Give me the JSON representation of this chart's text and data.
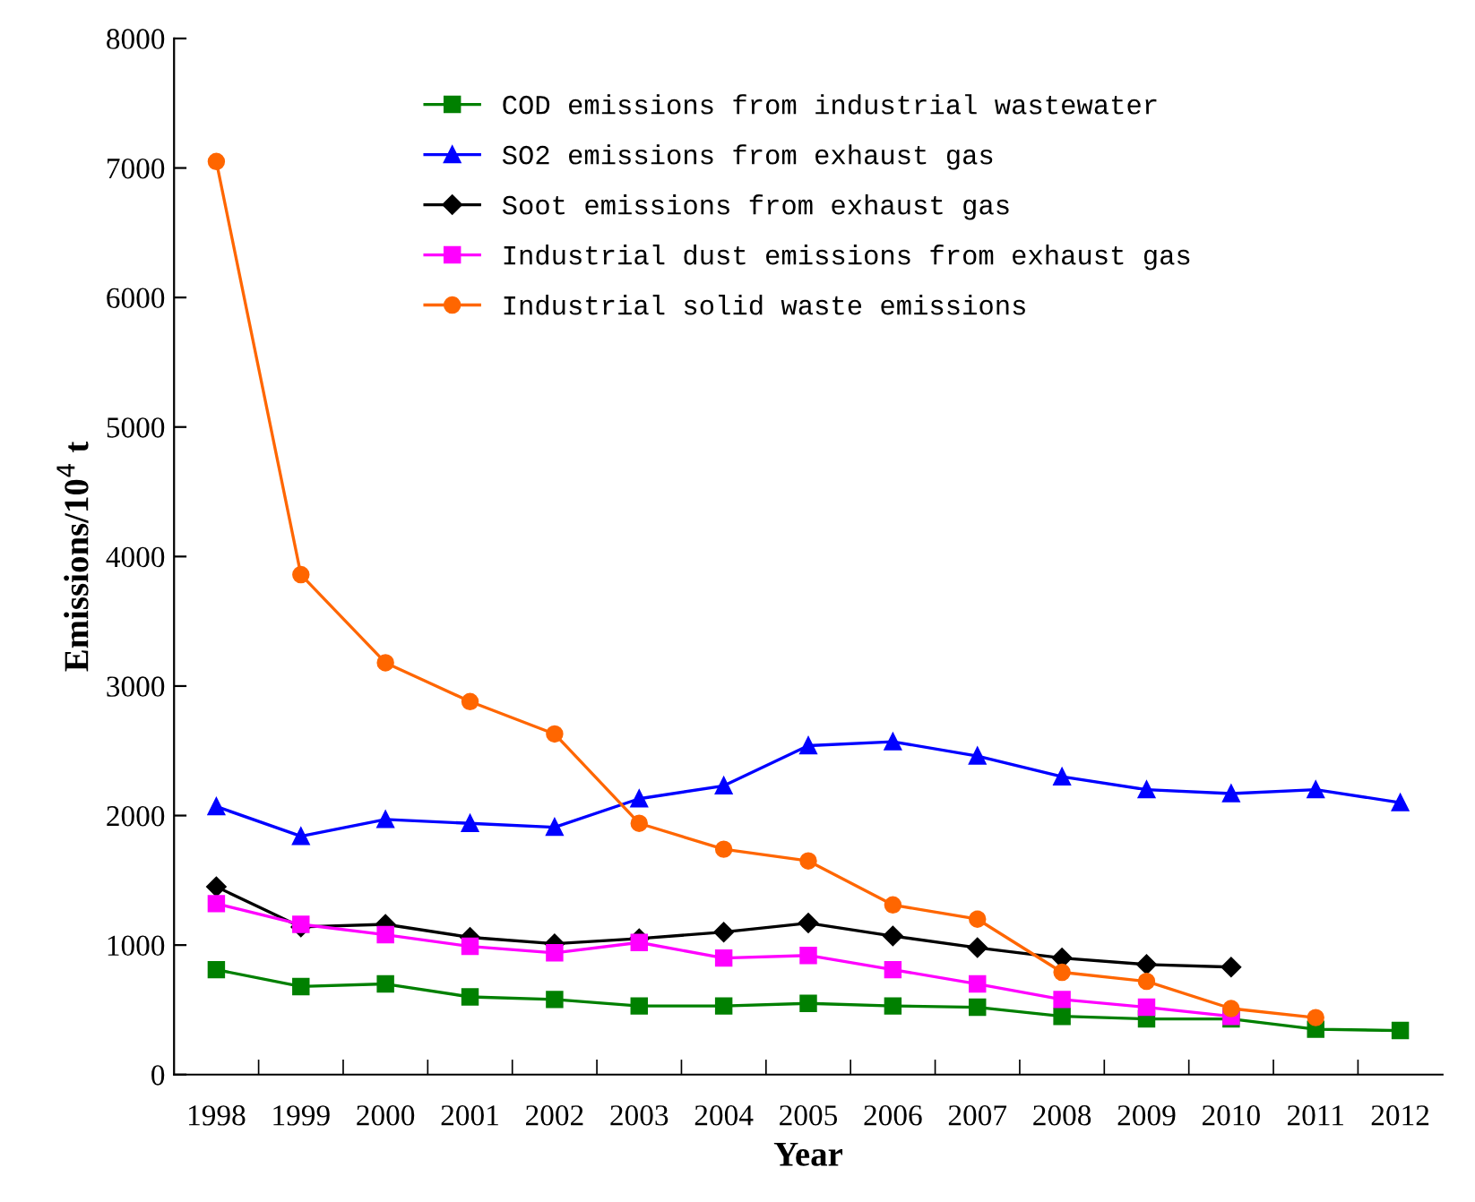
{
  "chart_data": {
    "type": "line",
    "xlabel": "Year",
    "ylabel": "Emissions/10$^{4}$ t",
    "categories": [
      "1998",
      "1999",
      "2000",
      "2001",
      "2002",
      "2003",
      "2004",
      "2005",
      "2006",
      "2007",
      "2008",
      "2009",
      "2010",
      "2011",
      "2012"
    ],
    "ylim": [
      0,
      8000
    ],
    "yticks": [
      0,
      1000,
      2000,
      3000,
      4000,
      5000,
      6000,
      7000,
      8000
    ],
    "grid": false,
    "legend": "top",
    "series": [
      {
        "name": "COD emissions from industrial wastewater",
        "color": "#008000",
        "marker": "square",
        "values": [
          810,
          680,
          700,
          600,
          580,
          530,
          530,
          550,
          530,
          520,
          450,
          430,
          430,
          350,
          340
        ]
      },
      {
        "name": "SO2 emissions from exhaust gas",
        "color": "#0000ff",
        "marker": "triangle",
        "values": [
          2070,
          1840,
          1970,
          1940,
          1910,
          2130,
          2230,
          2540,
          2570,
          2460,
          2300,
          2200,
          2170,
          2200,
          2100
        ]
      },
      {
        "name": "Soot emissions from exhaust gas",
        "color": "#000000",
        "marker": "diamond",
        "values": [
          1450,
          1140,
          1160,
          1060,
          1010,
          1050,
          1100,
          1170,
          1070,
          980,
          900,
          850,
          830,
          null,
          null
        ]
      },
      {
        "name": "Industrial dust emissions from exhaust gas",
        "color": "#ff00ff",
        "marker": "square",
        "values": [
          1320,
          1160,
          1080,
          990,
          940,
          1020,
          900,
          920,
          810,
          700,
          580,
          520,
          450,
          null,
          null
        ]
      },
      {
        "name": "Industrial solid waste emissions",
        "color": "#ff6600",
        "marker": "circle",
        "values": [
          7050,
          3860,
          3180,
          2880,
          2630,
          1940,
          1740,
          1650,
          1310,
          1200,
          790,
          720,
          510,
          440,
          null
        ]
      }
    ]
  }
}
